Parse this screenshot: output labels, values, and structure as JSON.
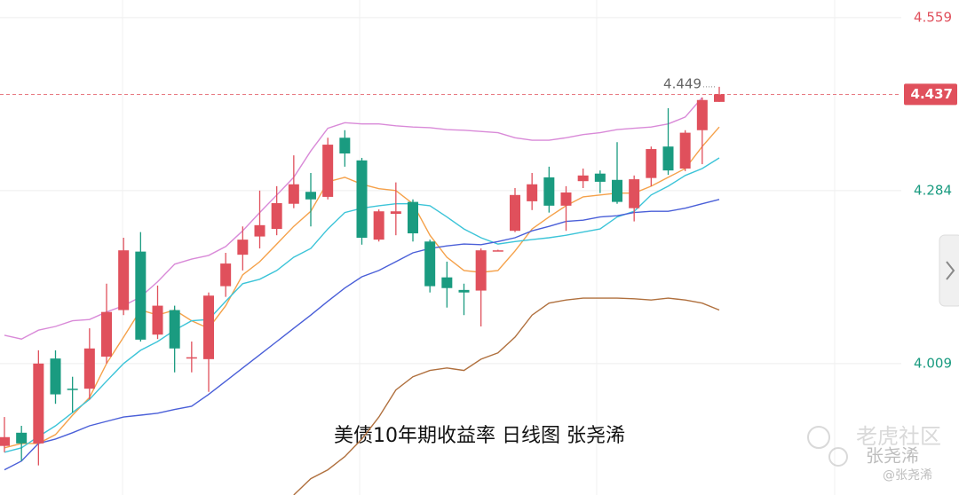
{
  "chart_data": {
    "type": "candlestick",
    "title": "美债10年期收益率 日线图  张尧浠",
    "watermark": {
      "brand": "老虎社区",
      "author": "张尧浠",
      "handle": "@张尧浠"
    },
    "up_color": "#e0505c",
    "down_color": "#1a9b80",
    "open": [
      3.878,
      3.899,
      3.882,
      4.017,
      3.969,
      3.969,
      4.02,
      4.094,
      4.187,
      4.055,
      4.094,
      4.019,
      4.016,
      4.132,
      4.182,
      4.211,
      4.223,
      4.263,
      4.282,
      4.274,
      4.368,
      4.332,
      4.206,
      4.247,
      4.266,
      4.203,
      4.146,
      4.126,
      4.125,
      4.189,
      4.22,
      4.267,
      4.305,
      4.26,
      4.299,
      4.311,
      4.301,
      4.256,
      4.304,
      4.354,
      4.319,
      4.38,
      4.425
    ],
    "high": [
      3.924,
      3.91,
      4.03,
      4.03,
      3.988,
      4.065,
      4.136,
      4.209,
      4.218,
      4.133,
      4.101,
      4.044,
      4.122,
      4.185,
      4.227,
      4.284,
      4.291,
      4.34,
      4.312,
      4.368,
      4.38,
      4.336,
      4.254,
      4.297,
      4.27,
      4.206,
      4.171,
      4.136,
      4.192,
      4.19,
      4.288,
      4.312,
      4.322,
      4.291,
      4.319,
      4.316,
      4.361,
      4.308,
      4.354,
      4.415,
      4.38,
      4.432,
      4.449
    ],
    "low": [
      3.868,
      3.854,
      3.847,
      3.945,
      3.931,
      3.952,
      4.009,
      4.086,
      4.044,
      4.048,
      3.995,
      3.995,
      3.964,
      4.115,
      4.157,
      4.192,
      4.213,
      4.256,
      4.227,
      4.27,
      4.322,
      4.198,
      4.203,
      4.213,
      4.203,
      4.122,
      4.098,
      4.086,
      4.068,
      4.188,
      4.218,
      4.253,
      4.249,
      4.22,
      4.288,
      4.28,
      4.263,
      4.235,
      4.291,
      4.309,
      4.315,
      4.326,
      4.425
    ],
    "close": [
      3.892,
      3.882,
      4.009,
      3.96,
      3.967,
      4.033,
      4.091,
      4.189,
      4.047,
      4.101,
      4.033,
      4.019,
      4.117,
      4.168,
      4.206,
      4.229,
      4.264,
      4.294,
      4.27,
      4.357,
      4.343,
      4.209,
      4.251,
      4.251,
      4.216,
      4.132,
      4.129,
      4.122,
      4.189,
      4.189,
      4.277,
      4.294,
      4.26,
      4.281,
      4.308,
      4.298,
      4.266,
      4.302,
      4.35,
      4.316,
      4.376,
      4.428,
      4.437
    ],
    "lines": [
      {
        "color": "#d98ad8",
        "values": [
          4.054,
          4.048,
          4.062,
          4.068,
          4.077,
          4.079,
          4.091,
          4.101,
          4.115,
          4.139,
          4.167,
          4.175,
          4.181,
          4.195,
          4.22,
          4.249,
          4.277,
          4.305,
          4.347,
          4.383,
          4.392,
          4.39,
          4.39,
          4.387,
          4.385,
          4.384,
          4.381,
          4.38,
          4.378,
          4.376,
          4.368,
          4.364,
          4.364,
          4.368,
          4.373,
          4.376,
          4.381,
          4.383,
          4.385,
          4.39,
          4.401,
          4.432,
          null
        ]
      },
      {
        "color": "#f5a14a",
        "values": [
          3.875,
          3.882,
          3.882,
          3.896,
          3.927,
          3.955,
          4.009,
          4.051,
          4.094,
          4.086,
          4.094,
          4.077,
          4.065,
          4.101,
          4.15,
          4.171,
          4.199,
          4.227,
          4.251,
          4.298,
          4.305,
          4.294,
          4.287,
          4.284,
          4.263,
          4.213,
          4.178,
          4.157,
          4.154,
          4.157,
          4.188,
          4.223,
          4.242,
          4.26,
          4.274,
          4.277,
          4.28,
          4.28,
          4.291,
          4.305,
          4.319,
          4.354,
          4.385
        ]
      },
      {
        "color": "#3cc4d8",
        "values": [
          3.868,
          3.875,
          3.893,
          3.91,
          3.931,
          3.952,
          3.981,
          4.009,
          4.03,
          4.044,
          4.062,
          4.077,
          4.079,
          4.108,
          4.136,
          4.143,
          4.157,
          4.178,
          4.192,
          4.223,
          4.249,
          4.256,
          4.26,
          4.263,
          4.263,
          4.26,
          4.242,
          4.223,
          4.209,
          4.199,
          4.203,
          4.206,
          4.209,
          4.213,
          4.218,
          4.223,
          4.242,
          4.251,
          4.277,
          4.291,
          4.308,
          4.319,
          4.336
        ]
      },
      {
        "color": "#4a5fd8",
        "values": [
          3.84,
          3.854,
          3.882,
          3.889,
          3.899,
          3.91,
          3.917,
          3.924,
          3.927,
          3.93,
          3.936,
          3.941,
          3.96,
          3.981,
          4.002,
          4.023,
          4.044,
          4.065,
          4.086,
          4.108,
          4.129,
          4.147,
          4.157,
          4.171,
          4.185,
          4.192,
          4.196,
          4.199,
          4.198,
          4.203,
          4.209,
          4.22,
          4.227,
          4.235,
          4.237,
          4.242,
          4.244,
          4.249,
          4.251,
          4.251,
          4.256,
          4.263,
          4.27
        ]
      },
      {
        "color": "#b0703e",
        "values": [
          null,
          null,
          null,
          null,
          null,
          null,
          null,
          null,
          null,
          null,
          null,
          null,
          null,
          null,
          null,
          null,
          null,
          3.8,
          3.826,
          3.84,
          3.861,
          3.889,
          3.924,
          3.967,
          3.988,
          3.998,
          4.002,
          3.998,
          4.016,
          4.026,
          4.051,
          4.086,
          4.105,
          4.11,
          4.113,
          4.113,
          4.113,
          4.112,
          4.11,
          4.113,
          4.11,
          4.105,
          4.094
        ]
      }
    ],
    "ylim": [
      3.8,
      4.587
    ],
    "yticks": [
      4.559,
      4.284,
      4.009
    ],
    "ytick_colors": [
      "#e0505c",
      "#1a9b80",
      "#1a9b80"
    ],
    "last_price": 4.437,
    "max_marker": 4.449,
    "grid": true
  }
}
